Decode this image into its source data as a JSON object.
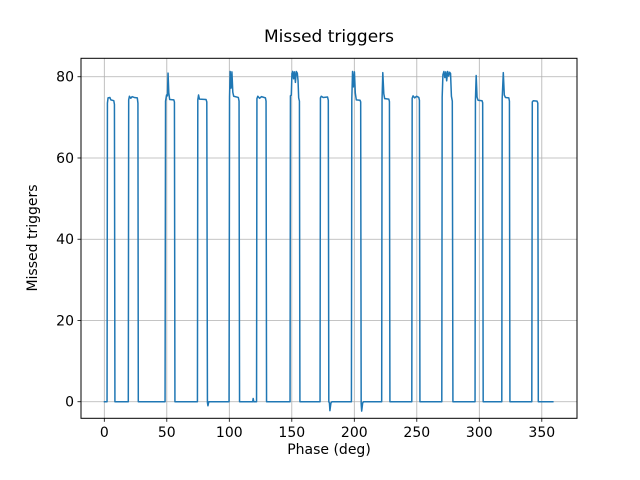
{
  "figure": {
    "background": "#ffffff"
  },
  "chart_data": {
    "type": "line",
    "title": "Missed triggers",
    "xlabel": "Phase (deg)",
    "ylabel": "Missed triggers",
    "xlim": [
      -18.64,
      378.16
    ],
    "ylim": [
      -4.08,
      84.54
    ],
    "xticks": [
      0,
      50,
      100,
      150,
      200,
      250,
      300,
      350
    ],
    "yticks": [
      0,
      20,
      40,
      60,
      80
    ],
    "grid": true,
    "legend": null,
    "colors": {
      "line": "#1f77b4",
      "grid": "#b0b0b0",
      "spine": "#000000",
      "text": "#000000",
      "background": "#ffffff"
    },
    "line_width": 1.5,
    "series": [
      {
        "name": "Missed triggers",
        "points": [
          [
            0,
            0
          ],
          [
            2.2,
            0
          ],
          [
            2.5,
            73.5
          ],
          [
            3.0,
            74.8
          ],
          [
            4.5,
            74.9
          ],
          [
            5.2,
            74.3
          ],
          [
            7.6,
            74.1
          ],
          [
            8.1,
            73.2
          ],
          [
            8.5,
            0
          ],
          [
            19.2,
            0
          ],
          [
            19.5,
            74.3
          ],
          [
            20.1,
            75.2
          ],
          [
            21.2,
            74.7
          ],
          [
            22.3,
            75.1
          ],
          [
            24.0,
            74.9
          ],
          [
            26.4,
            74.8
          ],
          [
            26.9,
            73.5
          ],
          [
            27.2,
            0
          ],
          [
            48.6,
            0
          ],
          [
            49.0,
            74.0
          ],
          [
            49.8,
            75.5
          ],
          [
            50.5,
            75.3
          ],
          [
            51.0,
            80.9
          ],
          [
            51.6,
            76.0
          ],
          [
            52.3,
            74.4
          ],
          [
            55.6,
            74.3
          ],
          [
            56.1,
            73.8
          ],
          [
            56.5,
            0
          ],
          [
            74.5,
            0
          ],
          [
            74.8,
            74.3
          ],
          [
            75.4,
            75.5
          ],
          [
            76.1,
            74.5
          ],
          [
            81.4,
            74.4
          ],
          [
            82.0,
            73.8
          ],
          [
            82.5,
            -0.2
          ],
          [
            82.9,
            -1.0
          ],
          [
            83.6,
            0
          ],
          [
            99.8,
            0
          ],
          [
            100.2,
            75.0
          ],
          [
            100.7,
            81.3
          ],
          [
            101.4,
            77.2
          ],
          [
            102.1,
            81.2
          ],
          [
            102.8,
            76.2
          ],
          [
            103.5,
            75.2
          ],
          [
            107.2,
            74.9
          ],
          [
            107.8,
            74.0
          ],
          [
            108.2,
            0
          ],
          [
            118.7,
            0
          ],
          [
            119.1,
            0.8
          ],
          [
            119.6,
            0
          ],
          [
            121.8,
            0
          ],
          [
            122.1,
            74.6
          ],
          [
            122.8,
            75.2
          ],
          [
            124.2,
            74.7
          ],
          [
            125.7,
            75.1
          ],
          [
            128.9,
            74.8
          ],
          [
            129.4,
            74.0
          ],
          [
            129.8,
            0
          ],
          [
            148.6,
            0
          ],
          [
            148.9,
            75.3
          ],
          [
            149.6,
            75.5
          ],
          [
            150.1,
            80.8
          ],
          [
            150.7,
            81.3
          ],
          [
            151.4,
            79.5
          ],
          [
            152.1,
            81.2
          ],
          [
            152.9,
            78.6
          ],
          [
            153.6,
            81.3
          ],
          [
            154.4,
            80.9
          ],
          [
            155.0,
            79.0
          ],
          [
            155.5,
            74.8
          ],
          [
            156.1,
            74.0
          ],
          [
            156.5,
            0
          ],
          [
            172.6,
            0
          ],
          [
            172.9,
            74.8
          ],
          [
            173.6,
            75.2
          ],
          [
            175.1,
            74.9
          ],
          [
            178.6,
            75.0
          ],
          [
            179.2,
            74.2
          ],
          [
            179.6,
            0
          ],
          [
            180.1,
            -0.3
          ],
          [
            180.5,
            -2.2
          ],
          [
            181.3,
            -0.3
          ],
          [
            182.1,
            0
          ],
          [
            197.7,
            0
          ],
          [
            198.0,
            74.5
          ],
          [
            198.6,
            81.3
          ],
          [
            199.3,
            77.5
          ],
          [
            200.1,
            81.2
          ],
          [
            200.8,
            76.0
          ],
          [
            201.6,
            74.3
          ],
          [
            204.6,
            74.2
          ],
          [
            205.1,
            73.8
          ],
          [
            205.5,
            -0.5
          ],
          [
            205.9,
            -2.3
          ],
          [
            206.7,
            -0.3
          ],
          [
            207.4,
            0
          ],
          [
            221.9,
            0
          ],
          [
            222.2,
            74.5
          ],
          [
            222.8,
            81.0
          ],
          [
            223.6,
            75.8
          ],
          [
            224.3,
            74.6
          ],
          [
            227.6,
            74.5
          ],
          [
            228.1,
            73.9
          ],
          [
            228.5,
            0
          ],
          [
            246.0,
            0
          ],
          [
            246.3,
            74.7
          ],
          [
            247.0,
            75.3
          ],
          [
            248.3,
            74.8
          ],
          [
            249.9,
            75.2
          ],
          [
            251.6,
            74.9
          ],
          [
            252.1,
            74.2
          ],
          [
            252.5,
            0
          ],
          [
            270.0,
            0
          ],
          [
            270.3,
            75.0
          ],
          [
            270.9,
            80.5
          ],
          [
            271.7,
            81.3
          ],
          [
            272.4,
            79.8
          ],
          [
            273.2,
            81.2
          ],
          [
            273.9,
            79.0
          ],
          [
            274.7,
            81.3
          ],
          [
            275.5,
            80.2
          ],
          [
            276.3,
            81.1
          ],
          [
            277.0,
            80.8
          ],
          [
            277.7,
            75.2
          ],
          [
            278.4,
            74.0
          ],
          [
            278.9,
            0
          ],
          [
            296.6,
            0
          ],
          [
            296.9,
            74.2
          ],
          [
            297.5,
            80.3
          ],
          [
            298.2,
            75.0
          ],
          [
            299.0,
            74.2
          ],
          [
            302.2,
            74.1
          ],
          [
            302.7,
            73.6
          ],
          [
            303.1,
            0
          ],
          [
            318.0,
            0
          ],
          [
            318.3,
            74.5
          ],
          [
            319.2,
            81.0
          ],
          [
            320.0,
            75.5
          ],
          [
            320.9,
            74.9
          ],
          [
            323.6,
            74.8
          ],
          [
            324.1,
            74.0
          ],
          [
            324.5,
            0
          ],
          [
            342.0,
            0
          ],
          [
            342.4,
            73.8
          ],
          [
            343.2,
            74.1
          ],
          [
            346.2,
            74.0
          ],
          [
            346.8,
            73.5
          ],
          [
            347.2,
            0
          ],
          [
            359.0,
            0
          ]
        ]
      }
    ]
  }
}
